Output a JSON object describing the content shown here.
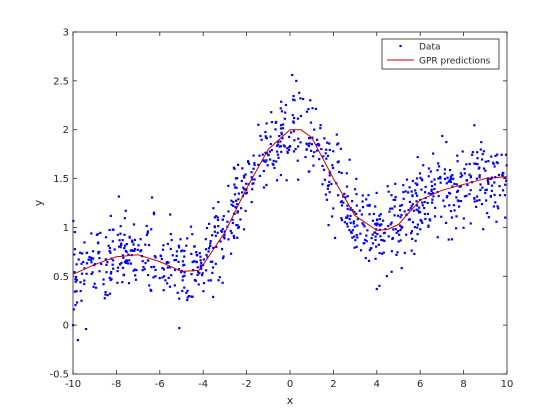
{
  "chart_data": {
    "type": "scatter",
    "title": "",
    "xlabel": "x",
    "ylabel": "y",
    "xlim": [
      -10,
      10
    ],
    "ylim": [
      -0.5,
      3
    ],
    "xticks": [
      -10,
      -8,
      -6,
      -4,
      -2,
      0,
      2,
      4,
      6,
      8,
      10
    ],
    "yticks": [
      -0.5,
      0,
      0.5,
      1,
      1.5,
      2,
      2.5,
      3
    ],
    "grid": false,
    "legend_position": "top-right",
    "noise_sd_estimate": 0.2,
    "n_points_estimate": 1000,
    "series": [
      {
        "name": "Data",
        "kind": "scatter",
        "marker": "point",
        "color": "#0000ff",
        "note": "noisy samples scattered around the GPR prediction curve",
        "trend": {
          "x": [
            -10,
            -9,
            -8,
            -7,
            -6,
            -5,
            -4.2,
            -4,
            -3,
            -2,
            -1,
            0,
            0.5,
            1,
            2,
            3,
            4,
            4.5,
            5,
            6,
            7,
            8,
            9,
            10
          ],
          "y": [
            0.52,
            0.62,
            0.7,
            0.72,
            0.65,
            0.55,
            0.56,
            0.62,
            0.95,
            1.4,
            1.8,
            2.0,
            2.0,
            1.92,
            1.5,
            1.12,
            0.97,
            0.98,
            1.03,
            1.28,
            1.38,
            1.44,
            1.5,
            1.52
          ]
        },
        "outliers": [
          {
            "x": -10.0,
            "y": 0.0
          },
          {
            "x": -9.4,
            "y": -0.04
          },
          {
            "x": -5.1,
            "y": -0.03
          },
          {
            "x": 0.1,
            "y": 2.56
          },
          {
            "x": 4.0,
            "y": 0.37
          }
        ]
      },
      {
        "name": "GPR predictions",
        "kind": "line",
        "color": "#cc0000",
        "x": [
          -10,
          -9,
          -8,
          -7,
          -6,
          -5,
          -4.2,
          -4,
          -3,
          -2,
          -1,
          0,
          0.5,
          1,
          2,
          3,
          4,
          4.5,
          5,
          6,
          7,
          8,
          9,
          10
        ],
        "y": [
          0.52,
          0.62,
          0.7,
          0.72,
          0.65,
          0.55,
          0.56,
          0.62,
          0.95,
          1.4,
          1.8,
          2.0,
          2.0,
          1.92,
          1.5,
          1.12,
          0.97,
          0.98,
          1.03,
          1.28,
          1.38,
          1.44,
          1.5,
          1.52
        ]
      }
    ]
  }
}
